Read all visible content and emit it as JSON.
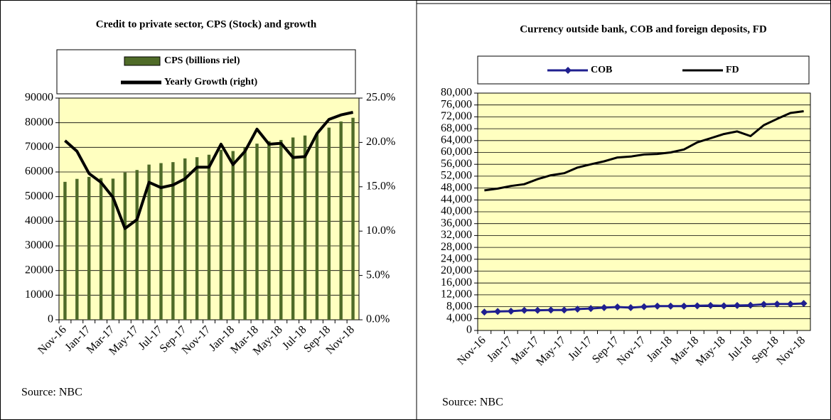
{
  "chart_data": [
    {
      "type": "bar",
      "title": "Credit to private sector, CPS (Stock) and growth",
      "source": "Source: NBC",
      "categories": [
        "Nov-16",
        null,
        "Jan-17",
        null,
        "Mar-17",
        null,
        "May-17",
        null,
        "Jul-17",
        null,
        "Sep-17",
        null,
        "Nov-17",
        null,
        "Jan-18",
        null,
        "Mar-18",
        null,
        "May-18",
        null,
        "Jul-18",
        null,
        "Sep-18",
        null,
        "Nov-18"
      ],
      "series": [
        {
          "name": "CPS (billions riel)",
          "type": "bar",
          "color": "#4f6b28",
          "values": [
            56000,
            57200,
            58000,
            57500,
            57300,
            59800,
            60800,
            63000,
            63600,
            64000,
            65500,
            66000,
            67000,
            69000,
            68500,
            70000,
            71500,
            72500,
            73000,
            74000,
            74800,
            75300,
            78000,
            80500,
            82000
          ]
        },
        {
          "name": "Yearly Growth (right)",
          "type": "line",
          "axis": "y2",
          "color": "#000000",
          "values": [
            20.2,
            19.0,
            16.5,
            15.5,
            13.8,
            10.3,
            11.3,
            15.5,
            14.9,
            15.2,
            15.9,
            17.2,
            17.2,
            19.8,
            17.5,
            19.0,
            21.5,
            19.8,
            19.9,
            18.3,
            18.4,
            21.0,
            22.6,
            23.1,
            23.4
          ]
        }
      ],
      "ylim": [
        0,
        90000
      ],
      "yticks": [
        0,
        10000,
        20000,
        30000,
        40000,
        50000,
        60000,
        70000,
        80000,
        90000
      ],
      "y2lim": [
        0,
        25
      ],
      "y2ticks": [
        {
          "value": 0,
          "label": "0.0%"
        },
        {
          "value": 5,
          "label": "5.0%"
        },
        {
          "value": 10,
          "label": "10.0%"
        },
        {
          "value": 15,
          "label": "15.0%"
        },
        {
          "value": 20,
          "label": "20.0%"
        },
        {
          "value": 25,
          "label": "25.0%"
        }
      ],
      "grid": true,
      "legend": "top",
      "background": "#ffffc0"
    },
    {
      "type": "line",
      "title": "Currency outside bank, COB and foreign deposits, FD",
      "source": "Source: NBC",
      "categories": [
        "Nov-16",
        null,
        "Jan-17",
        null,
        "Mar-17",
        null,
        "May-17",
        null,
        "Jul-17",
        null,
        "Sep-17",
        null,
        "Nov-17",
        null,
        "Jan-18",
        null,
        "Mar-18",
        null,
        "May-18",
        null,
        "Jul-18",
        null,
        "Sep-18",
        null,
        "Nov-18"
      ],
      "series": [
        {
          "name": "COB",
          "color": "#1f1f8f",
          "marker": "diamond",
          "values": [
            6200,
            6400,
            6500,
            6800,
            6800,
            6900,
            6900,
            7200,
            7400,
            7700,
            7900,
            7700,
            8000,
            8200,
            8200,
            8200,
            8300,
            8400,
            8300,
            8400,
            8500,
            8800,
            8900,
            8900,
            9100
          ]
        },
        {
          "name": "FD",
          "color": "#000000",
          "values": [
            47200,
            47800,
            48700,
            49300,
            51000,
            52300,
            53000,
            54900,
            56000,
            57000,
            58300,
            58600,
            59300,
            59500,
            60000,
            61000,
            63400,
            64800,
            66200,
            67100,
            65500,
            69200,
            71300,
            73300,
            73900
          ]
        }
      ],
      "ylim": [
        0,
        80000
      ],
      "yticks": [
        0,
        {
          "value": 4000,
          "label": "4,000"
        },
        {
          "value": 8000,
          "label": "8,000"
        },
        {
          "value": 12000,
          "label": "12,000"
        },
        {
          "value": 16000,
          "label": "16,000"
        },
        {
          "value": 20000,
          "label": "20,000"
        },
        {
          "value": 24000,
          "label": "24,000"
        },
        {
          "value": 28000,
          "label": "28,000"
        },
        {
          "value": 32000,
          "label": "32,000"
        },
        {
          "value": 36000,
          "label": "36,000"
        },
        {
          "value": 40000,
          "label": "40,000"
        },
        {
          "value": 44000,
          "label": "44,000"
        },
        {
          "value": 48000,
          "label": "48,000"
        },
        {
          "value": 52000,
          "label": "52,000"
        },
        {
          "value": 56000,
          "label": "56,000"
        },
        {
          "value": 60000,
          "label": "60,000"
        },
        {
          "value": 64000,
          "label": "64,000"
        },
        {
          "value": 68000,
          "label": "68,000"
        },
        {
          "value": 72000,
          "label": "72,000"
        },
        {
          "value": 76000,
          "label": "76,000"
        },
        {
          "value": 80000,
          "label": "80,000"
        }
      ],
      "grid": true,
      "legend": "top",
      "background": "#ffffc0"
    }
  ]
}
